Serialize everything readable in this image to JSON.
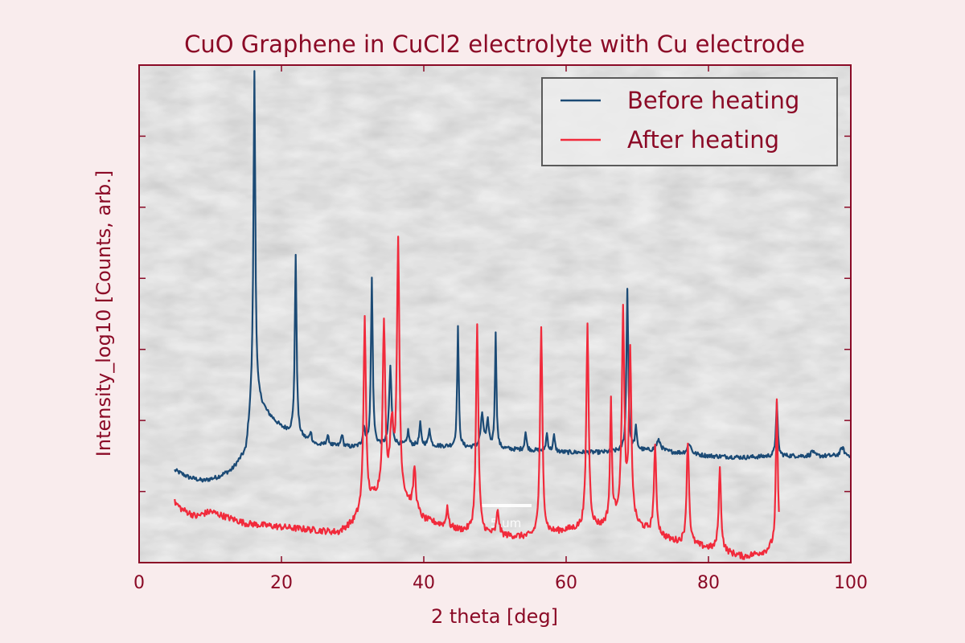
{
  "chart_data": {
    "type": "line",
    "title": "CuO Graphene in CuCl2 electrolyte with Cu electrode",
    "xlabel": "2 theta [deg]",
    "ylabel": "Intensity_log10 [Counts, arb.]",
    "xlim": [
      0,
      100
    ],
    "ylim": [
      0,
      7
    ],
    "x_ticks": [
      0,
      20,
      40,
      60,
      80,
      100
    ],
    "x_tick_labels": [
      "0",
      "20",
      "40",
      "60",
      "80",
      "100"
    ],
    "y_ticks": [
      1,
      2,
      3,
      4,
      5,
      6
    ],
    "y_tick_labels_shown": false,
    "legend_position": "top-right",
    "background_image": "SEM micrograph of CuO nanostructures with scale bar",
    "scale_bar_label": "5 um",
    "series": [
      {
        "name": "Before heating",
        "color": "#1b4a75",
        "x_start": 5,
        "x_end": 100,
        "x_step": 0.1,
        "baseline": [
          [
            5,
            1.3
          ],
          [
            7,
            1.2
          ],
          [
            9,
            1.15
          ],
          [
            11,
            1.2
          ],
          [
            13,
            1.3
          ],
          [
            15,
            1.55
          ],
          [
            16,
            2.4
          ],
          [
            18,
            2.1
          ],
          [
            20,
            1.9
          ],
          [
            22,
            1.8
          ],
          [
            25,
            1.65
          ],
          [
            30,
            1.62
          ],
          [
            35,
            1.65
          ],
          [
            40,
            1.65
          ],
          [
            45,
            1.62
          ],
          [
            50,
            1.6
          ],
          [
            55,
            1.58
          ],
          [
            60,
            1.55
          ],
          [
            65,
            1.55
          ],
          [
            70,
            1.58
          ],
          [
            75,
            1.55
          ],
          [
            80,
            1.5
          ],
          [
            85,
            1.48
          ],
          [
            90,
            1.5
          ],
          [
            95,
            1.5
          ],
          [
            100,
            1.5
          ]
        ],
        "noise": 0.03,
        "peaks": [
          [
            16.2,
            4.55,
            0.15
          ],
          [
            22.0,
            2.5,
            0.15
          ],
          [
            24.1,
            0.15,
            0.15
          ],
          [
            26.5,
            0.12,
            0.25
          ],
          [
            28.5,
            0.18,
            0.15
          ],
          [
            31.6,
            0.25,
            0.2
          ],
          [
            32.7,
            2.35,
            0.15
          ],
          [
            35.3,
            1.1,
            0.2
          ],
          [
            37.8,
            0.2,
            0.15
          ],
          [
            39.5,
            0.3,
            0.15
          ],
          [
            40.8,
            0.25,
            0.15
          ],
          [
            44.8,
            1.7,
            0.13
          ],
          [
            48.2,
            0.45,
            0.25
          ],
          [
            49.0,
            0.35,
            0.2
          ],
          [
            50.1,
            1.6,
            0.13
          ],
          [
            54.3,
            0.25,
            0.15
          ],
          [
            57.3,
            0.25,
            0.15
          ],
          [
            58.3,
            0.22,
            0.15
          ],
          [
            68.6,
            2.3,
            0.15
          ],
          [
            69.8,
            0.3,
            0.15
          ],
          [
            73.0,
            0.15,
            0.4
          ],
          [
            77.3,
            0.15,
            0.3
          ],
          [
            89.6,
            0.75,
            0.15
          ],
          [
            94.6,
            0.08,
            0.2
          ],
          [
            98.8,
            0.12,
            0.3
          ]
        ]
      },
      {
        "name": "After heating",
        "color": "#f12a3b",
        "x_start": 5,
        "x_end": 89.9,
        "x_step": 0.1,
        "baseline": [
          [
            5,
            0.85
          ],
          [
            6,
            0.75
          ],
          [
            8,
            0.65
          ],
          [
            10,
            0.72
          ],
          [
            12,
            0.65
          ],
          [
            15,
            0.55
          ],
          [
            20,
            0.5
          ],
          [
            25,
            0.45
          ],
          [
            28,
            0.42
          ],
          [
            30,
            0.55
          ],
          [
            33,
            0.9
          ],
          [
            36,
            1.0
          ],
          [
            38,
            0.8
          ],
          [
            40,
            0.6
          ],
          [
            45,
            0.45
          ],
          [
            50,
            0.38
          ],
          [
            55,
            0.35
          ],
          [
            60,
            0.45
          ],
          [
            65,
            0.5
          ],
          [
            68,
            0.7
          ],
          [
            70,
            0.5
          ],
          [
            75,
            0.3
          ],
          [
            80,
            0.2
          ],
          [
            85,
            0.08
          ],
          [
            88,
            0.15
          ],
          [
            89.9,
            0.3
          ]
        ],
        "noise": 0.045,
        "peaks": [
          [
            31.7,
            2.7,
            0.2
          ],
          [
            34.4,
            2.4,
            0.2
          ],
          [
            35.5,
            0.9,
            0.3
          ],
          [
            36.4,
            3.5,
            0.2
          ],
          [
            38.7,
            0.6,
            0.2
          ],
          [
            43.3,
            0.3,
            0.15
          ],
          [
            47.5,
            2.9,
            0.2
          ],
          [
            50.4,
            0.35,
            0.2
          ],
          [
            56.5,
            2.9,
            0.2
          ],
          [
            63.0,
            2.85,
            0.2
          ],
          [
            66.3,
            1.65,
            0.15
          ],
          [
            68.0,
            2.8,
            0.2
          ],
          [
            69.0,
            2.3,
            0.2
          ],
          [
            72.5,
            1.2,
            0.2
          ],
          [
            77.1,
            1.45,
            0.2
          ],
          [
            81.6,
            1.15,
            0.2
          ],
          [
            89.6,
            2.0,
            0.15
          ]
        ]
      }
    ]
  }
}
